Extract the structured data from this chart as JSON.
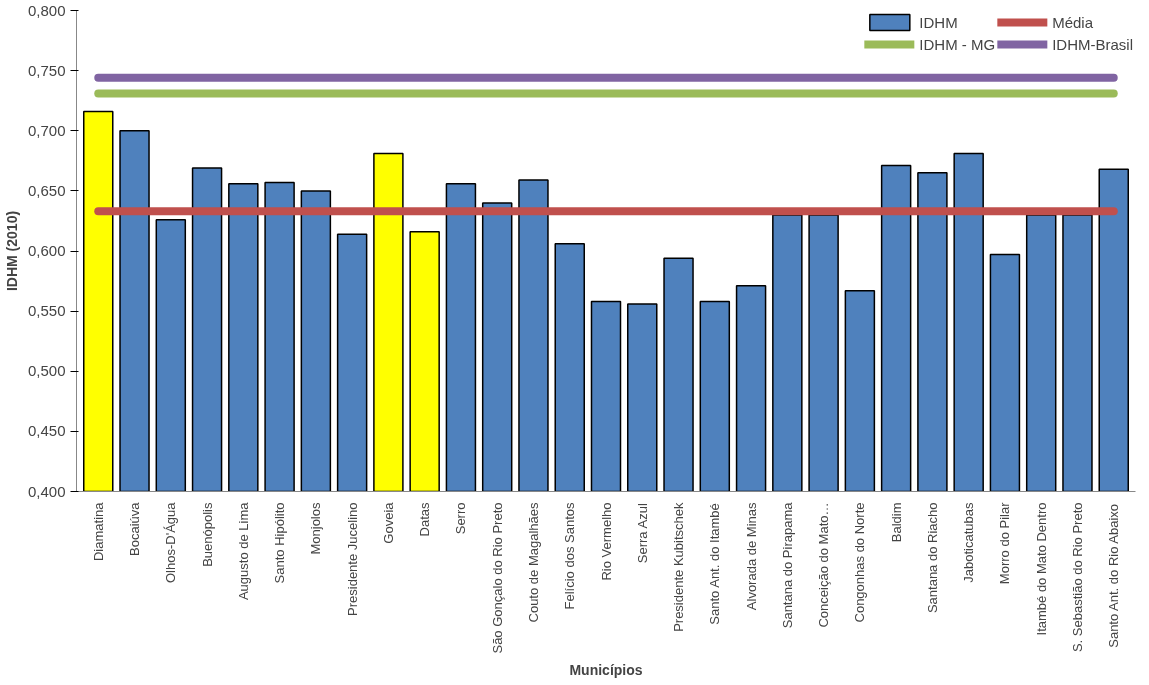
{
  "chart_data": {
    "type": "bar",
    "xlabel": "Municípios",
    "ylabel": "IDHM (2010)",
    "categories": [
      "Diamatina",
      "Bocaiúva",
      "Olhos-D'Água",
      "Buenópolis",
      "Augusto de Lima",
      "Santo Hipólito",
      "Monjolos",
      "Presidente Jucelino",
      "Goveia",
      "Datas",
      "Serro",
      "São Gonçalo do Rio Preto",
      "Couto de Magalhães",
      "Felício dos Santos",
      "Rio Vermelho",
      "Serra Azul",
      "Presidente Kubitschek",
      "Santo Ant. do Itambé",
      "Alvorada de Minas",
      "Santana do Pirapama",
      "Conceição do Mato…",
      "Congonhas do Norte",
      "Baldim",
      "Santana do Riacho",
      "Jaboticatubas",
      "Morro do Pilar",
      "Itambé do Mato Dentro",
      "S. Sebastião do Rio Preto",
      "Santo Ant. do Rio Abaixo"
    ],
    "series": [
      {
        "name": "IDHM",
        "color": "#4f81bd",
        "colors": [
          "#ffff00",
          "#4f81bd",
          "#4f81bd",
          "#4f81bd",
          "#4f81bd",
          "#4f81bd",
          "#4f81bd",
          "#4f81bd",
          "#ffff00",
          "#ffff00",
          "#4f81bd",
          "#4f81bd",
          "#4f81bd",
          "#4f81bd",
          "#4f81bd",
          "#4f81bd",
          "#4f81bd",
          "#4f81bd",
          "#4f81bd",
          "#4f81bd",
          "#4f81bd",
          "#4f81bd",
          "#4f81bd",
          "#4f81bd",
          "#4f81bd",
          "#4f81bd",
          "#4f81bd",
          "#4f81bd",
          "#4f81bd"
        ],
        "values": [
          0.716,
          0.7,
          0.626,
          0.669,
          0.656,
          0.657,
          0.65,
          0.614,
          0.681,
          0.616,
          0.656,
          0.64,
          0.659,
          0.606,
          0.558,
          0.556,
          0.594,
          0.558,
          0.571,
          0.63,
          0.63,
          0.567,
          0.671,
          0.665,
          0.681,
          0.597,
          0.63,
          0.63,
          0.668
        ]
      },
      {
        "name": "Média",
        "type": "line",
        "color": "#c0504d",
        "values": [
          0.633,
          0.633,
          0.633,
          0.633,
          0.633,
          0.633,
          0.633,
          0.633,
          0.633,
          0.633,
          0.633,
          0.633,
          0.633,
          0.633,
          0.633,
          0.633,
          0.633,
          0.633,
          0.633,
          0.633,
          0.633,
          0.633,
          0.633,
          0.633,
          0.633,
          0.633,
          0.633,
          0.633,
          0.633
        ]
      },
      {
        "name": "IDHM - MG",
        "type": "line",
        "color": "#9bbb59",
        "values": [
          0.731,
          0.731,
          0.731,
          0.731,
          0.731,
          0.731,
          0.731,
          0.731,
          0.731,
          0.731,
          0.731,
          0.731,
          0.731,
          0.731,
          0.731,
          0.731,
          0.731,
          0.731,
          0.731,
          0.731,
          0.731,
          0.731,
          0.731,
          0.731,
          0.731,
          0.731,
          0.731,
          0.731,
          0.731
        ]
      },
      {
        "name": "IDHM-Brasil",
        "type": "line",
        "color": "#8064a2",
        "values": [
          0.744,
          0.744,
          0.744,
          0.744,
          0.744,
          0.744,
          0.744,
          0.744,
          0.744,
          0.744,
          0.744,
          0.744,
          0.744,
          0.744,
          0.744,
          0.744,
          0.744,
          0.744,
          0.744,
          0.744,
          0.744,
          0.744,
          0.744,
          0.744,
          0.744,
          0.744,
          0.744,
          0.744,
          0.744
        ]
      }
    ],
    "ylim": [
      0.4,
      0.8
    ],
    "yticks": [
      {
        "value": 0.4,
        "label": "0,400"
      },
      {
        "value": 0.45,
        "label": "0,450"
      },
      {
        "value": 0.5,
        "label": "0,500"
      },
      {
        "value": 0.55,
        "label": "0,550"
      },
      {
        "value": 0.6,
        "label": "0,600"
      },
      {
        "value": 0.65,
        "label": "0,650"
      },
      {
        "value": 0.7,
        "label": "0,700"
      },
      {
        "value": 0.75,
        "label": "0,750"
      },
      {
        "value": 0.8,
        "label": "0,800"
      }
    ],
    "grid": false,
    "legend": "top right",
    "marker": "none",
    "line_style": "solid"
  }
}
